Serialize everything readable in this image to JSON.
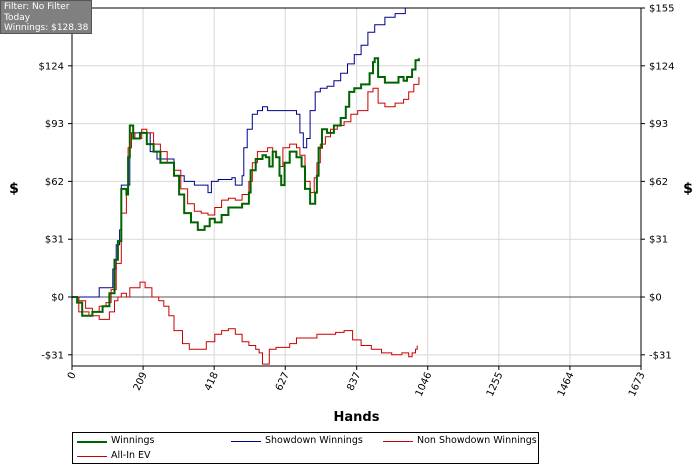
{
  "filter_box": {
    "line1": "Filter: No Filter",
    "line2": "Today",
    "line3": "Winnings: $128.38"
  },
  "chart_data": {
    "type": "line",
    "xlabel": "Hands",
    "ylabel": "$",
    "xlim": [
      0,
      1673
    ],
    "ylim": [
      -37,
      155
    ],
    "x_ticks": [
      "0",
      "209",
      "418",
      "627",
      "837",
      "1046",
      "1255",
      "1464",
      "1673"
    ],
    "y_ticks": [
      {
        "value": 155,
        "label": "$155"
      },
      {
        "value": 124,
        "label": "$124"
      },
      {
        "value": 93,
        "label": "$93"
      },
      {
        "value": 62,
        "label": "$62"
      },
      {
        "value": 31,
        "label": "$31"
      },
      {
        "value": 0,
        "label": "$0"
      },
      {
        "value": -31,
        "label": "-$31"
      }
    ],
    "series": [
      {
        "name": "Winnings",
        "color": "#006400",
        "points": [
          [
            0,
            0
          ],
          [
            15,
            -3
          ],
          [
            30,
            -10
          ],
          [
            60,
            -8
          ],
          [
            90,
            -5
          ],
          [
            110,
            2
          ],
          [
            125,
            20
          ],
          [
            135,
            30
          ],
          [
            145,
            58
          ],
          [
            160,
            55
          ],
          [
            165,
            75
          ],
          [
            170,
            92
          ],
          [
            180,
            85
          ],
          [
            200,
            88
          ],
          [
            220,
            82
          ],
          [
            240,
            78
          ],
          [
            260,
            72
          ],
          [
            280,
            72
          ],
          [
            300,
            65
          ],
          [
            315,
            55
          ],
          [
            330,
            45
          ],
          [
            350,
            40
          ],
          [
            370,
            36
          ],
          [
            390,
            38
          ],
          [
            405,
            42
          ],
          [
            420,
            40
          ],
          [
            440,
            44
          ],
          [
            460,
            48
          ],
          [
            480,
            48
          ],
          [
            500,
            50
          ],
          [
            520,
            56
          ],
          [
            525,
            68
          ],
          [
            540,
            74
          ],
          [
            560,
            76
          ],
          [
            570,
            75
          ],
          [
            580,
            70
          ],
          [
            590,
            78
          ],
          [
            600,
            75
          ],
          [
            610,
            65
          ],
          [
            615,
            60
          ],
          [
            625,
            72
          ],
          [
            640,
            78
          ],
          [
            660,
            75
          ],
          [
            675,
            70
          ],
          [
            685,
            58
          ],
          [
            700,
            50
          ],
          [
            715,
            56
          ],
          [
            720,
            65
          ],
          [
            725,
            80
          ],
          [
            735,
            90
          ],
          [
            750,
            88
          ],
          [
            770,
            92
          ],
          [
            790,
            96
          ],
          [
            805,
            102
          ],
          [
            815,
            110
          ],
          [
            830,
            112
          ],
          [
            850,
            114
          ],
          [
            875,
            120
          ],
          [
            885,
            126
          ],
          [
            890,
            128
          ],
          [
            900,
            118
          ],
          [
            920,
            115
          ],
          [
            940,
            115
          ],
          [
            960,
            118
          ],
          [
            975,
            116
          ],
          [
            985,
            118
          ],
          [
            1000,
            122
          ],
          [
            1010,
            127
          ],
          [
            1020,
            128
          ]
        ]
      },
      {
        "name": "Showdown Winnings",
        "color": "#00008B",
        "points": [
          [
            0,
            0
          ],
          [
            70,
            0
          ],
          [
            80,
            5
          ],
          [
            110,
            5
          ],
          [
            120,
            15
          ],
          [
            130,
            28
          ],
          [
            140,
            36
          ],
          [
            145,
            60
          ],
          [
            160,
            60
          ],
          [
            170,
            88
          ],
          [
            200,
            88
          ],
          [
            230,
            78
          ],
          [
            250,
            74
          ],
          [
            280,
            74
          ],
          [
            300,
            65
          ],
          [
            330,
            62
          ],
          [
            360,
            60
          ],
          [
            380,
            60
          ],
          [
            400,
            56
          ],
          [
            410,
            62
          ],
          [
            430,
            63
          ],
          [
            450,
            63
          ],
          [
            470,
            64
          ],
          [
            480,
            60
          ],
          [
            500,
            65
          ],
          [
            505,
            80
          ],
          [
            515,
            90
          ],
          [
            530,
            98
          ],
          [
            545,
            100
          ],
          [
            560,
            102
          ],
          [
            575,
            100
          ],
          [
            600,
            100
          ],
          [
            620,
            100
          ],
          [
            640,
            100
          ],
          [
            660,
            98
          ],
          [
            670,
            88
          ],
          [
            680,
            80
          ],
          [
            690,
            85
          ],
          [
            700,
            100
          ],
          [
            715,
            110
          ],
          [
            730,
            112
          ],
          [
            750,
            113
          ],
          [
            770,
            116
          ],
          [
            790,
            120
          ],
          [
            810,
            125
          ],
          [
            830,
            130
          ],
          [
            850,
            135
          ],
          [
            870,
            142
          ],
          [
            890,
            146
          ],
          [
            920,
            150
          ],
          [
            950,
            152
          ],
          [
            980,
            155
          ],
          [
            1000,
            155
          ]
        ]
      },
      {
        "name": "Non Showdown Winnings",
        "color": "#CC0000",
        "points": [
          [
            0,
            0
          ],
          [
            20,
            -8
          ],
          [
            50,
            -10
          ],
          [
            80,
            -12
          ],
          [
            110,
            -8
          ],
          [
            125,
            -2
          ],
          [
            135,
            0
          ],
          [
            145,
            2
          ],
          [
            160,
            0
          ],
          [
            170,
            5
          ],
          [
            185,
            5
          ],
          [
            200,
            8
          ],
          [
            215,
            5
          ],
          [
            235,
            0
          ],
          [
            255,
            -2
          ],
          [
            270,
            -5
          ],
          [
            285,
            -10
          ],
          [
            300,
            -18
          ],
          [
            325,
            -25
          ],
          [
            345,
            -28
          ],
          [
            370,
            -28
          ],
          [
            395,
            -24
          ],
          [
            420,
            -20
          ],
          [
            440,
            -18
          ],
          [
            460,
            -17
          ],
          [
            480,
            -20
          ],
          [
            500,
            -24
          ],
          [
            520,
            -26
          ],
          [
            540,
            -28
          ],
          [
            550,
            -30
          ],
          [
            560,
            -36
          ],
          [
            580,
            -28
          ],
          [
            600,
            -27
          ],
          [
            620,
            -27
          ],
          [
            640,
            -25
          ],
          [
            660,
            -22
          ],
          [
            680,
            -22
          ],
          [
            700,
            -22
          ],
          [
            720,
            -20
          ],
          [
            750,
            -20
          ],
          [
            775,
            -19
          ],
          [
            800,
            -18
          ],
          [
            825,
            -23
          ],
          [
            850,
            -26
          ],
          [
            880,
            -28
          ],
          [
            910,
            -30
          ],
          [
            940,
            -31
          ],
          [
            970,
            -30
          ],
          [
            990,
            -32
          ],
          [
            1000,
            -30
          ],
          [
            1010,
            -28
          ],
          [
            1015,
            -26
          ]
        ]
      },
      {
        "name": "All-In EV",
        "color": "#CC0000",
        "points": [
          [
            0,
            0
          ],
          [
            20,
            -2
          ],
          [
            40,
            -6
          ],
          [
            60,
            -8
          ],
          [
            80,
            -5
          ],
          [
            100,
            -3
          ],
          [
            115,
            4
          ],
          [
            130,
            18
          ],
          [
            145,
            45
          ],
          [
            160,
            55
          ],
          [
            165,
            80
          ],
          [
            175,
            88
          ],
          [
            185,
            85
          ],
          [
            205,
            90
          ],
          [
            220,
            88
          ],
          [
            240,
            82
          ],
          [
            260,
            78
          ],
          [
            280,
            72
          ],
          [
            300,
            68
          ],
          [
            320,
            58
          ],
          [
            340,
            50
          ],
          [
            360,
            46
          ],
          [
            380,
            45
          ],
          [
            400,
            44
          ],
          [
            420,
            48
          ],
          [
            440,
            52
          ],
          [
            460,
            53
          ],
          [
            480,
            52
          ],
          [
            500,
            55
          ],
          [
            520,
            62
          ],
          [
            530,
            72
          ],
          [
            545,
            78
          ],
          [
            560,
            78
          ],
          [
            575,
            80
          ],
          [
            590,
            78
          ],
          [
            600,
            75
          ],
          [
            610,
            70
          ],
          [
            620,
            80
          ],
          [
            640,
            82
          ],
          [
            660,
            80
          ],
          [
            670,
            76
          ],
          [
            685,
            62
          ],
          [
            700,
            56
          ],
          [
            712,
            64
          ],
          [
            720,
            72
          ],
          [
            730,
            82
          ],
          [
            745,
            86
          ],
          [
            760,
            90
          ],
          [
            780,
            92
          ],
          [
            800,
            94
          ],
          [
            820,
            98
          ],
          [
            840,
            100
          ],
          [
            870,
            110
          ],
          [
            885,
            112
          ],
          [
            900,
            104
          ],
          [
            920,
            102
          ],
          [
            950,
            104
          ],
          [
            975,
            106
          ],
          [
            990,
            110
          ],
          [
            1005,
            114
          ],
          [
            1020,
            118
          ]
        ]
      }
    ],
    "legend": [
      {
        "label": "Winnings",
        "color": "#006400"
      },
      {
        "label": "Showdown Winnings",
        "color": "#00008B"
      },
      {
        "label": "Non Showdown Winnings",
        "color": "#CC0000"
      },
      {
        "label": "All-In EV",
        "color": "#CC0000"
      }
    ],
    "legend_position": "bottom",
    "grid": true,
    "background": "#ffffff"
  }
}
